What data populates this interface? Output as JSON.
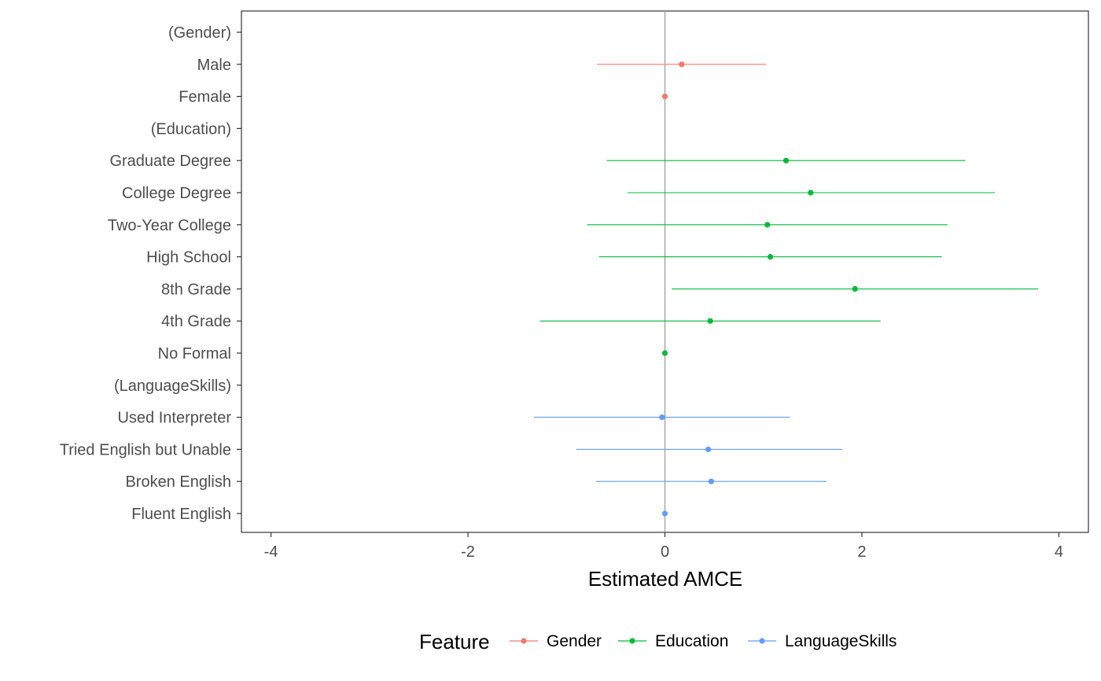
{
  "chart_data": {
    "type": "scatter",
    "subtype": "coefficient-plot-with-confidence-intervals",
    "title": "",
    "xlabel": "Estimated AMCE",
    "ylabel": "",
    "xlim": [
      -4.3,
      4.3
    ],
    "xticks": [
      -4,
      -2,
      0,
      2,
      4
    ],
    "reference_line_x": 0,
    "grid": false,
    "legend": {
      "title": "Feature",
      "placement": "bottom",
      "entries": [
        "Gender",
        "Education",
        "LanguageSkills"
      ]
    },
    "colors": {
      "Gender": "#F8766D",
      "Education": "#00BA38",
      "LanguageSkills": "#619CFF",
      "reference_line": "#999999",
      "axis": "#333333"
    },
    "rows": [
      {
        "label": "(Gender)",
        "feature": "Gender",
        "is_header": true
      },
      {
        "label": "Male",
        "feature": "Gender",
        "estimate": 0.17,
        "lower": -0.69,
        "upper": 1.03
      },
      {
        "label": "Female",
        "feature": "Gender",
        "estimate": 0.0,
        "lower": 0.0,
        "upper": 0.0
      },
      {
        "label": "(Education)",
        "feature": "Education",
        "is_header": true
      },
      {
        "label": "Graduate Degree",
        "feature": "Education",
        "estimate": 1.23,
        "lower": -0.59,
        "upper": 3.05
      },
      {
        "label": "College Degree",
        "feature": "Education",
        "estimate": 1.48,
        "lower": -0.38,
        "upper": 3.35
      },
      {
        "label": "Two-Year College",
        "feature": "Education",
        "estimate": 1.04,
        "lower": -0.79,
        "upper": 2.87
      },
      {
        "label": "High School",
        "feature": "Education",
        "estimate": 1.07,
        "lower": -0.67,
        "upper": 2.81
      },
      {
        "label": "8th Grade",
        "feature": "Education",
        "estimate": 1.93,
        "lower": 0.07,
        "upper": 3.79
      },
      {
        "label": "4th Grade",
        "feature": "Education",
        "estimate": 0.46,
        "lower": -1.27,
        "upper": 2.19
      },
      {
        "label": "No Formal",
        "feature": "Education",
        "estimate": 0.0,
        "lower": 0.0,
        "upper": 0.0
      },
      {
        "label": "(LanguageSkills)",
        "feature": "LanguageSkills",
        "is_header": true
      },
      {
        "label": "Used Interpreter",
        "feature": "LanguageSkills",
        "estimate": -0.03,
        "lower": -1.33,
        "upper": 1.27
      },
      {
        "label": "Tried English but Unable",
        "feature": "LanguageSkills",
        "estimate": 0.44,
        "lower": -0.9,
        "upper": 1.8
      },
      {
        "label": "Broken English",
        "feature": "LanguageSkills",
        "estimate": 0.47,
        "lower": -0.7,
        "upper": 1.64
      },
      {
        "label": "Fluent English",
        "feature": "LanguageSkills",
        "estimate": 0.0,
        "lower": 0.0,
        "upper": 0.0
      }
    ]
  }
}
